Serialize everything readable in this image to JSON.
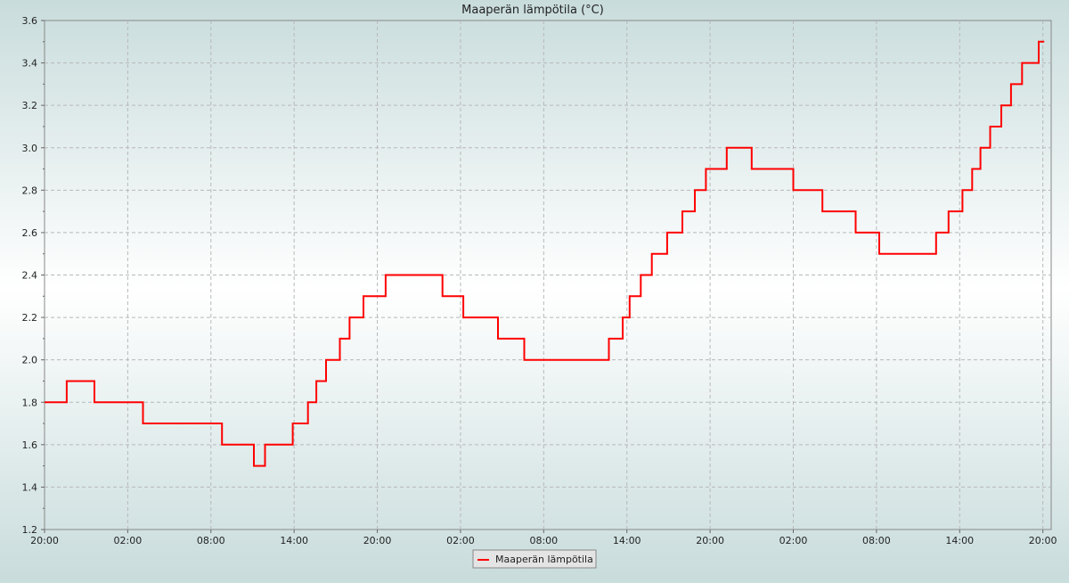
{
  "chart_data": {
    "type": "line",
    "title": "Maaperän lämpötila (°C)",
    "xlabel": "",
    "ylabel": "",
    "ylim": [
      1.2,
      3.6
    ],
    "y_ticks": [
      "1.2",
      "1.4",
      "1.6",
      "1.8",
      "2.0",
      "2.2",
      "2.4",
      "2.6",
      "2.8",
      "3.0",
      "3.2",
      "3.4",
      "3.6"
    ],
    "x_ticks": [
      "20:00",
      "02:00",
      "08:00",
      "14:00",
      "20:00",
      "02:00",
      "08:00",
      "14:00",
      "20:00",
      "02:00",
      "08:00",
      "14:00",
      "20:00"
    ],
    "grid": true,
    "legend_position": "bottom-center",
    "series": [
      {
        "name": "Maaperän lämpötila",
        "color": "#ff0000",
        "style": "step",
        "points": [
          [
            0.0,
            1.8
          ],
          [
            1.6,
            1.8
          ],
          [
            1.6,
            1.9
          ],
          [
            3.6,
            1.9
          ],
          [
            3.6,
            1.8
          ],
          [
            7.1,
            1.8
          ],
          [
            7.1,
            1.7
          ],
          [
            12.8,
            1.7
          ],
          [
            12.8,
            1.6
          ],
          [
            15.1,
            1.6
          ],
          [
            15.1,
            1.5
          ],
          [
            15.9,
            1.5
          ],
          [
            15.9,
            1.6
          ],
          [
            17.9,
            1.6
          ],
          [
            17.9,
            1.7
          ],
          [
            19.0,
            1.7
          ],
          [
            19.0,
            1.8
          ],
          [
            19.6,
            1.8
          ],
          [
            19.6,
            1.9
          ],
          [
            20.3,
            1.9
          ],
          [
            20.3,
            2.0
          ],
          [
            21.3,
            2.0
          ],
          [
            21.3,
            2.1
          ],
          [
            22.0,
            2.1
          ],
          [
            22.0,
            2.2
          ],
          [
            23.0,
            2.2
          ],
          [
            23.0,
            2.3
          ],
          [
            24.6,
            2.3
          ],
          [
            24.6,
            2.4
          ],
          [
            28.7,
            2.4
          ],
          [
            28.7,
            2.3
          ],
          [
            30.2,
            2.3
          ],
          [
            30.2,
            2.2
          ],
          [
            32.7,
            2.2
          ],
          [
            32.7,
            2.1
          ],
          [
            34.6,
            2.1
          ],
          [
            34.6,
            2.0
          ],
          [
            40.7,
            2.0
          ],
          [
            40.7,
            2.1
          ],
          [
            41.7,
            2.1
          ],
          [
            41.7,
            2.2
          ],
          [
            42.2,
            2.2
          ],
          [
            42.2,
            2.3
          ],
          [
            43.0,
            2.3
          ],
          [
            43.0,
            2.4
          ],
          [
            43.8,
            2.4
          ],
          [
            43.8,
            2.5
          ],
          [
            44.9,
            2.5
          ],
          [
            44.9,
            2.6
          ],
          [
            46.0,
            2.6
          ],
          [
            46.0,
            2.7
          ],
          [
            46.9,
            2.7
          ],
          [
            46.9,
            2.8
          ],
          [
            47.7,
            2.8
          ],
          [
            47.7,
            2.9
          ],
          [
            49.2,
            2.9
          ],
          [
            49.2,
            3.0
          ],
          [
            51.0,
            3.0
          ],
          [
            51.0,
            2.9
          ],
          [
            54.0,
            2.9
          ],
          [
            54.0,
            2.8
          ],
          [
            56.1,
            2.8
          ],
          [
            56.1,
            2.7
          ],
          [
            58.5,
            2.7
          ],
          [
            58.5,
            2.6
          ],
          [
            60.2,
            2.6
          ],
          [
            60.2,
            2.5
          ],
          [
            64.3,
            2.5
          ],
          [
            64.3,
            2.6
          ],
          [
            65.2,
            2.6
          ],
          [
            65.2,
            2.7
          ],
          [
            66.2,
            2.7
          ],
          [
            66.2,
            2.8
          ],
          [
            66.9,
            2.8
          ],
          [
            66.9,
            2.9
          ],
          [
            67.5,
            2.9
          ],
          [
            67.5,
            3.0
          ],
          [
            68.2,
            3.0
          ],
          [
            68.2,
            3.1
          ],
          [
            69.0,
            3.1
          ],
          [
            69.0,
            3.2
          ],
          [
            69.7,
            3.2
          ],
          [
            69.7,
            3.3
          ],
          [
            70.5,
            3.3
          ],
          [
            70.5,
            3.4
          ],
          [
            71.7,
            3.4
          ],
          [
            71.7,
            3.5
          ],
          [
            72.1,
            3.5
          ]
        ]
      }
    ]
  }
}
